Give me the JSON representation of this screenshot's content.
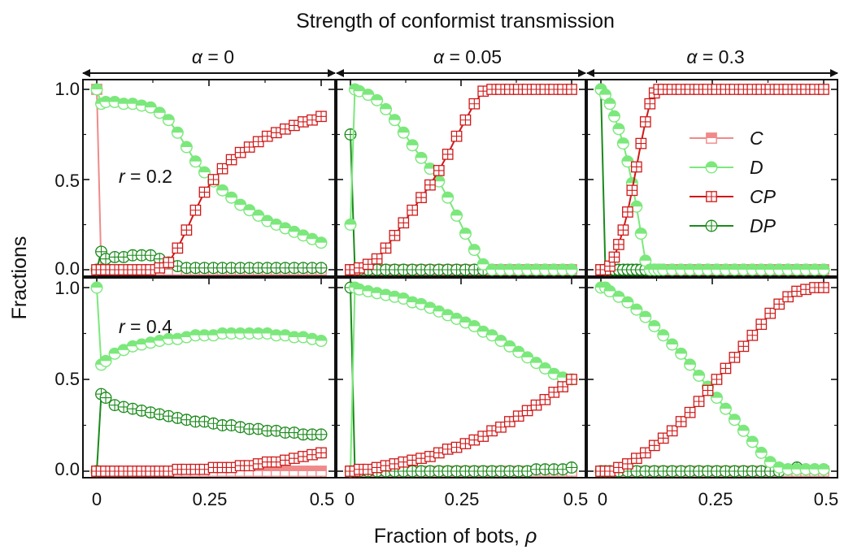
{
  "figure": {
    "top_title": "Strength of conformist transmission",
    "xlabel": "Fraction of bots, ",
    "xlabel_symbol": "ρ",
    "ylabel": "Fractions",
    "columns": [
      {
        "symbol": "α",
        "value_text": " = 0"
      },
      {
        "symbol": "α",
        "value_text": " = 0.05"
      },
      {
        "symbol": "α",
        "value_text": " = 0.3"
      }
    ],
    "rows": [
      {
        "symbol": "r",
        "value_text": " = 0.2"
      },
      {
        "symbol": "r",
        "value_text": " = 0.4"
      }
    ],
    "x_ticks": [
      "0",
      "0.25",
      "0.5"
    ],
    "y_ticks": [
      "0.0",
      "0.5",
      "1.0"
    ],
    "legend": [
      "C",
      "D",
      "CP",
      "DP"
    ],
    "colors": {
      "C": "#f08a8a",
      "D": "#7be87b",
      "CP": "#d01818",
      "DP": "#1a8a1a"
    }
  },
  "chart_data": [
    {
      "type": "line",
      "panel": "top-left",
      "alpha": "α = 0",
      "r": "r = 0.2",
      "xlim": [
        0,
        0.5
      ],
      "ylim": [
        0,
        1.0
      ],
      "x": [
        0,
        0.01,
        0.02,
        0.04,
        0.06,
        0.08,
        0.1,
        0.12,
        0.14,
        0.16,
        0.18,
        0.2,
        0.22,
        0.24,
        0.26,
        0.28,
        0.3,
        0.32,
        0.34,
        0.36,
        0.38,
        0.4,
        0.42,
        0.44,
        0.46,
        0.48,
        0.5
      ],
      "series": [
        {
          "name": "C",
          "values": [
            1.0,
            0.0,
            0.0,
            0.0,
            0.0,
            0.0,
            0.0,
            0.0,
            0.0,
            0.0,
            0.0,
            0.0,
            0.0,
            0.0,
            0.0,
            0.0,
            0.0,
            0.0,
            0.0,
            0.0,
            0.0,
            0.0,
            0.0,
            0.0,
            0.0,
            0.0,
            0.0
          ]
        },
        {
          "name": "D",
          "values": [
            1.0,
            0.92,
            0.93,
            0.93,
            0.92,
            0.92,
            0.91,
            0.9,
            0.87,
            0.83,
            0.76,
            0.68,
            0.6,
            0.54,
            0.49,
            0.44,
            0.4,
            0.36,
            0.33,
            0.3,
            0.27,
            0.25,
            0.23,
            0.21,
            0.19,
            0.17,
            0.15
          ]
        },
        {
          "name": "CP",
          "values": [
            0.0,
            0.0,
            0.0,
            0.0,
            0.0,
            0.0,
            0.0,
            0.0,
            0.01,
            0.04,
            0.12,
            0.22,
            0.33,
            0.43,
            0.5,
            0.56,
            0.61,
            0.65,
            0.68,
            0.71,
            0.74,
            0.76,
            0.78,
            0.8,
            0.82,
            0.83,
            0.85
          ]
        },
        {
          "name": "DP",
          "values": [
            0.0,
            0.1,
            0.06,
            0.07,
            0.07,
            0.08,
            0.08,
            0.08,
            0.06,
            0.04,
            0.02,
            0.01,
            0.01,
            0.01,
            0.01,
            0.01,
            0.01,
            0.01,
            0.01,
            0.01,
            0.01,
            0.01,
            0.01,
            0.01,
            0.01,
            0.01,
            0.01
          ]
        }
      ]
    },
    {
      "type": "line",
      "panel": "top-middle",
      "alpha": "α = 0.05",
      "r": "r = 0.2",
      "xlim": [
        0,
        0.5
      ],
      "ylim": [
        0,
        1.0
      ],
      "x": [
        0,
        0.01,
        0.02,
        0.04,
        0.06,
        0.08,
        0.1,
        0.12,
        0.14,
        0.16,
        0.18,
        0.2,
        0.22,
        0.24,
        0.26,
        0.28,
        0.3,
        0.32,
        0.34,
        0.36,
        0.38,
        0.4,
        0.42,
        0.44,
        0.46,
        0.48,
        0.5
      ],
      "series": [
        {
          "name": "C",
          "values": [
            0.0,
            0.0,
            0.0,
            0.0,
            0.0,
            0.0,
            0.0,
            0.0,
            0.0,
            0.0,
            0.0,
            0.0,
            0.0,
            0.0,
            0.0,
            0.0,
            0.0,
            0.0,
            0.0,
            0.0,
            0.0,
            0.0,
            0.0,
            0.0,
            0.0,
            0.0,
            0.0
          ]
        },
        {
          "name": "D",
          "values": [
            0.25,
            1.0,
            0.99,
            0.97,
            0.94,
            0.89,
            0.83,
            0.76,
            0.69,
            0.62,
            0.56,
            0.49,
            0.4,
            0.3,
            0.2,
            0.11,
            0.03,
            0.0,
            0.0,
            0.0,
            0.0,
            0.0,
            0.0,
            0.0,
            0.0,
            0.0,
            0.0
          ]
        },
        {
          "name": "CP",
          "values": [
            0.0,
            0.0,
            0.01,
            0.03,
            0.06,
            0.12,
            0.19,
            0.26,
            0.33,
            0.4,
            0.47,
            0.55,
            0.64,
            0.74,
            0.83,
            0.92,
            0.99,
            1.0,
            1.0,
            1.0,
            1.0,
            1.0,
            1.0,
            1.0,
            1.0,
            1.0,
            1.0
          ]
        },
        {
          "name": "DP",
          "values": [
            0.75,
            0.0,
            0.0,
            0.0,
            0.0,
            0.0,
            0.0,
            0.0,
            0.0,
            0.0,
            0.0,
            0.0,
            0.0,
            0.0,
            0.0,
            0.0,
            0.0,
            0.0,
            0.0,
            0.0,
            0.0,
            0.0,
            0.0,
            0.0,
            0.0,
            0.0,
            0.0
          ]
        }
      ]
    },
    {
      "type": "line",
      "panel": "top-right",
      "alpha": "α = 0.3",
      "r": "r = 0.2",
      "xlim": [
        0,
        0.5
      ],
      "ylim": [
        0,
        1.0
      ],
      "x": [
        0,
        0.01,
        0.02,
        0.03,
        0.04,
        0.05,
        0.06,
        0.07,
        0.08,
        0.09,
        0.1,
        0.11,
        0.12,
        0.13,
        0.14,
        0.16,
        0.18,
        0.2,
        0.22,
        0.24,
        0.26,
        0.28,
        0.3,
        0.32,
        0.34,
        0.36,
        0.38,
        0.4,
        0.42,
        0.44,
        0.46,
        0.48,
        0.5
      ],
      "series": [
        {
          "name": "C",
          "values": [
            0.0,
            0.0,
            0.0,
            0.0,
            0.0,
            0.0,
            0.0,
            0.0,
            0.0,
            0.0,
            0.0,
            0.0,
            0.0,
            0.0,
            0.0,
            0.0,
            0.0,
            0.0,
            0.0,
            0.0,
            0.0,
            0.0,
            0.0,
            0.0,
            0.0,
            0.0,
            0.0,
            0.0,
            0.0,
            0.0,
            0.0,
            0.0,
            0.0
          ]
        },
        {
          "name": "D",
          "values": [
            1.0,
            0.97,
            0.92,
            0.85,
            0.78,
            0.7,
            0.6,
            0.48,
            0.35,
            0.2,
            0.05,
            0.0,
            0.0,
            0.0,
            0.0,
            0.0,
            0.0,
            0.0,
            0.0,
            0.0,
            0.0,
            0.0,
            0.0,
            0.0,
            0.0,
            0.0,
            0.0,
            0.0,
            0.0,
            0.0,
            0.0,
            0.0,
            0.0
          ]
        },
        {
          "name": "CP",
          "values": [
            0.0,
            0.0,
            0.02,
            0.07,
            0.14,
            0.22,
            0.32,
            0.44,
            0.57,
            0.7,
            0.82,
            0.92,
            0.98,
            1.0,
            1.0,
            1.0,
            1.0,
            1.0,
            1.0,
            1.0,
            1.0,
            1.0,
            1.0,
            1.0,
            1.0,
            1.0,
            1.0,
            1.0,
            1.0,
            1.0,
            1.0,
            1.0,
            1.0
          ]
        },
        {
          "name": "DP",
          "values": [
            1.0,
            0.0,
            0.0,
            0.0,
            0.0,
            0.0,
            0.0,
            0.0,
            0.0,
            0.0,
            0.0,
            0.0,
            0.0,
            0.0,
            0.0,
            0.0,
            0.0,
            0.0,
            0.0,
            0.0,
            0.0,
            0.0,
            0.0,
            0.0,
            0.0,
            0.0,
            0.0,
            0.0,
            0.0,
            0.0,
            0.0,
            0.0,
            0.0
          ]
        }
      ]
    },
    {
      "type": "line",
      "panel": "bottom-left",
      "alpha": "α = 0",
      "r": "r = 0.4",
      "xlim": [
        0,
        0.5
      ],
      "ylim": [
        0,
        1.0
      ],
      "x": [
        0,
        0.01,
        0.02,
        0.04,
        0.06,
        0.08,
        0.1,
        0.12,
        0.14,
        0.16,
        0.18,
        0.2,
        0.22,
        0.24,
        0.26,
        0.28,
        0.3,
        0.32,
        0.34,
        0.36,
        0.38,
        0.4,
        0.42,
        0.44,
        0.46,
        0.48,
        0.5
      ],
      "series": [
        {
          "name": "C",
          "values": [
            0.0,
            0.0,
            0.0,
            0.0,
            0.0,
            0.0,
            0.0,
            0.0,
            0.0,
            0.0,
            0.0,
            0.0,
            0.0,
            0.0,
            0.0,
            0.0,
            0.0,
            0.0,
            0.0,
            0.0,
            0.0,
            0.0,
            0.0,
            0.0,
            0.0,
            0.0,
            0.0
          ]
        },
        {
          "name": "D",
          "values": [
            1.0,
            0.58,
            0.6,
            0.64,
            0.66,
            0.68,
            0.69,
            0.7,
            0.71,
            0.72,
            0.72,
            0.73,
            0.74,
            0.74,
            0.74,
            0.75,
            0.75,
            0.75,
            0.75,
            0.75,
            0.75,
            0.74,
            0.74,
            0.73,
            0.73,
            0.72,
            0.71
          ]
        },
        {
          "name": "CP",
          "values": [
            0.0,
            0.0,
            0.0,
            0.0,
            0.0,
            0.0,
            0.0,
            0.0,
            0.0,
            0.0,
            0.01,
            0.01,
            0.01,
            0.01,
            0.02,
            0.02,
            0.02,
            0.03,
            0.03,
            0.04,
            0.05,
            0.05,
            0.06,
            0.07,
            0.08,
            0.09,
            0.1
          ]
        },
        {
          "name": "DP",
          "values": [
            0.0,
            0.42,
            0.4,
            0.36,
            0.35,
            0.34,
            0.33,
            0.32,
            0.31,
            0.3,
            0.29,
            0.28,
            0.27,
            0.27,
            0.26,
            0.25,
            0.25,
            0.24,
            0.23,
            0.23,
            0.22,
            0.22,
            0.21,
            0.21,
            0.2,
            0.2,
            0.2
          ]
        }
      ]
    },
    {
      "type": "line",
      "panel": "bottom-middle",
      "alpha": "α = 0.05",
      "r": "r = 0.4",
      "xlim": [
        0,
        0.5
      ],
      "ylim": [
        0,
        1.0
      ],
      "x": [
        0,
        0.01,
        0.02,
        0.04,
        0.06,
        0.08,
        0.1,
        0.12,
        0.14,
        0.16,
        0.18,
        0.2,
        0.22,
        0.24,
        0.26,
        0.28,
        0.3,
        0.32,
        0.34,
        0.36,
        0.38,
        0.4,
        0.42,
        0.44,
        0.46,
        0.48,
        0.5
      ],
      "series": [
        {
          "name": "C",
          "values": [
            0.0,
            0.0,
            0.0,
            0.0,
            0.0,
            0.0,
            0.0,
            0.0,
            0.0,
            0.0,
            0.0,
            0.0,
            0.0,
            0.0,
            0.0,
            0.0,
            0.0,
            0.0,
            0.0,
            0.0,
            0.0,
            0.0,
            0.0,
            0.0,
            0.0,
            0.0,
            0.0
          ]
        },
        {
          "name": "D",
          "values": [
            0.0,
            1.0,
            0.99,
            0.98,
            0.97,
            0.96,
            0.95,
            0.94,
            0.92,
            0.91,
            0.89,
            0.87,
            0.85,
            0.83,
            0.81,
            0.79,
            0.76,
            0.74,
            0.71,
            0.68,
            0.65,
            0.62,
            0.59,
            0.56,
            0.53,
            0.51,
            0.5
          ]
        },
        {
          "name": "CP",
          "values": [
            0.0,
            0.0,
            0.01,
            0.01,
            0.02,
            0.03,
            0.04,
            0.05,
            0.06,
            0.07,
            0.08,
            0.1,
            0.12,
            0.13,
            0.15,
            0.17,
            0.19,
            0.22,
            0.24,
            0.27,
            0.3,
            0.33,
            0.36,
            0.39,
            0.43,
            0.46,
            0.5
          ]
        },
        {
          "name": "DP",
          "values": [
            1.0,
            0.0,
            0.0,
            0.0,
            0.0,
            0.0,
            0.0,
            0.0,
            0.0,
            0.0,
            0.0,
            0.0,
            0.0,
            0.0,
            0.0,
            0.0,
            0.0,
            0.0,
            0.0,
            0.0,
            0.0,
            0.0,
            0.01,
            0.01,
            0.01,
            0.01,
            0.02
          ]
        }
      ]
    },
    {
      "type": "line",
      "panel": "bottom-right",
      "alpha": "α = 0.3",
      "r": "r = 0.4",
      "xlim": [
        0,
        0.5
      ],
      "ylim": [
        0,
        1.0
      ],
      "x": [
        0,
        0.01,
        0.02,
        0.04,
        0.06,
        0.08,
        0.1,
        0.12,
        0.14,
        0.16,
        0.18,
        0.2,
        0.22,
        0.24,
        0.26,
        0.28,
        0.3,
        0.32,
        0.34,
        0.36,
        0.38,
        0.4,
        0.42,
        0.44,
        0.46,
        0.48,
        0.5
      ],
      "series": [
        {
          "name": "C",
          "values": [
            0.0,
            0.0,
            0.0,
            0.0,
            0.0,
            0.0,
            0.0,
            0.0,
            0.0,
            0.0,
            0.0,
            0.0,
            0.0,
            0.0,
            0.0,
            0.0,
            0.0,
            0.0,
            0.0,
            0.0,
            0.0,
            0.0,
            0.0,
            0.0,
            0.0,
            0.0,
            0.0
          ]
        },
        {
          "name": "D",
          "values": [
            1.0,
            1.0,
            0.98,
            0.95,
            0.92,
            0.88,
            0.84,
            0.79,
            0.74,
            0.69,
            0.64,
            0.58,
            0.52,
            0.46,
            0.4,
            0.34,
            0.28,
            0.22,
            0.16,
            0.1,
            0.05,
            0.02,
            0.01,
            0.01,
            0.01,
            0.01,
            0.01
          ]
        },
        {
          "name": "CP",
          "values": [
            0.0,
            0.0,
            0.0,
            0.02,
            0.04,
            0.07,
            0.1,
            0.14,
            0.18,
            0.22,
            0.27,
            0.32,
            0.38,
            0.44,
            0.5,
            0.56,
            0.62,
            0.68,
            0.74,
            0.8,
            0.86,
            0.91,
            0.95,
            0.98,
            0.99,
            1.0,
            1.0
          ]
        },
        {
          "name": "DP",
          "values": [
            0.0,
            0.0,
            0.0,
            0.0,
            0.0,
            0.0,
            0.0,
            0.0,
            0.0,
            0.0,
            0.0,
            0.0,
            0.0,
            0.0,
            0.0,
            0.0,
            0.0,
            0.0,
            0.0,
            0.0,
            0.0,
            0.0,
            0.01,
            0.02,
            0.01,
            0.01,
            0.01
          ]
        }
      ]
    }
  ]
}
